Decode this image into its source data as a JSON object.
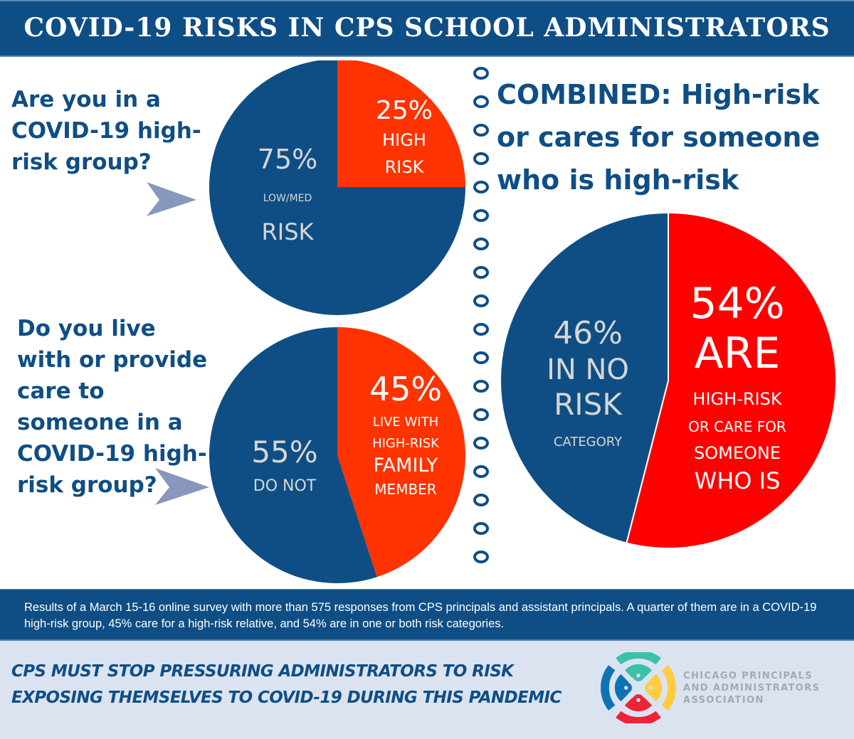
{
  "header": {
    "title": "COVID-19 RISKS IN CPS SCHOOL ADMINISTRATORS"
  },
  "questions": {
    "q1": "Are you in a COVID-19 high-risk group?",
    "q2": "Do you live with or provide care to someone in a COVID-19 high-risk group?",
    "combined": "COMBINED: High-risk or cares for someone who is high-risk"
  },
  "colors": {
    "navy": "#0f4e84",
    "orange": "#ff3300",
    "red": "#ff0000",
    "label_gray": "#d6d6d6",
    "arrow": "#8797bd"
  },
  "chart_data": [
    {
      "type": "pie",
      "title": "Are you in a COVID-19 high-risk group?",
      "slices": [
        {
          "label": "HIGH RISK",
          "value": 25,
          "color": "#ff3300",
          "text": [
            "25%",
            "HIGH",
            "RISK"
          ]
        },
        {
          "label": "LOW/MED RISK",
          "value": 75,
          "color": "#0f4e84",
          "text": [
            "75%",
            "LOW/MED",
            "RISK"
          ]
        }
      ]
    },
    {
      "type": "pie",
      "title": "Do you live with or provide care to someone in a COVID-19 high-risk group?",
      "slices": [
        {
          "label": "LIVE WITH HIGH-RISK FAMILY MEMBER",
          "value": 45,
          "color": "#ff3300",
          "text": [
            "45%",
            "LIVE WITH",
            "HIGH-RISK",
            "FAMILY",
            "MEMBER"
          ]
        },
        {
          "label": "DO NOT",
          "value": 55,
          "color": "#0f4e84",
          "text": [
            "55%",
            "DO NOT"
          ]
        }
      ]
    },
    {
      "type": "pie",
      "title": "COMBINED: High-risk or cares for someone who is high-risk",
      "slices": [
        {
          "label": "ARE HIGH-RISK OR CARE FOR SOMEONE WHO IS",
          "value": 54,
          "color": "#ff0000",
          "text": [
            "54%",
            "ARE",
            "HIGH-RISK",
            "OR CARE FOR",
            "SOMEONE",
            "WHO IS"
          ]
        },
        {
          "label": "IN NO RISK CATEGORY",
          "value": 46,
          "color": "#0f4e84",
          "text": [
            "46%",
            "IN NO",
            "RISK",
            "CATEGORY"
          ]
        }
      ]
    }
  ],
  "summary": "Results of a March 15-16 online survey with more than 575 responses from CPS principals and assistant principals. A quarter of them are in a COVID-19 high-risk group, 45% care for a high-risk relative, and 54% are in one or both risk categories.",
  "footer": {
    "call_line1": "CPS MUST STOP PRESSURING ADMINISTRATORS TO RISK",
    "call_line2": "EXPOSING THEMSELVES TO COVID-19 DURING THIS PANDEMIC",
    "org_line1": "CHICAGO PRINCIPALS",
    "org_line2": "AND ADMINISTRATORS",
    "org_line3": "ASSOCIATION",
    "logo_icon": "cpaa-logo-icon"
  }
}
